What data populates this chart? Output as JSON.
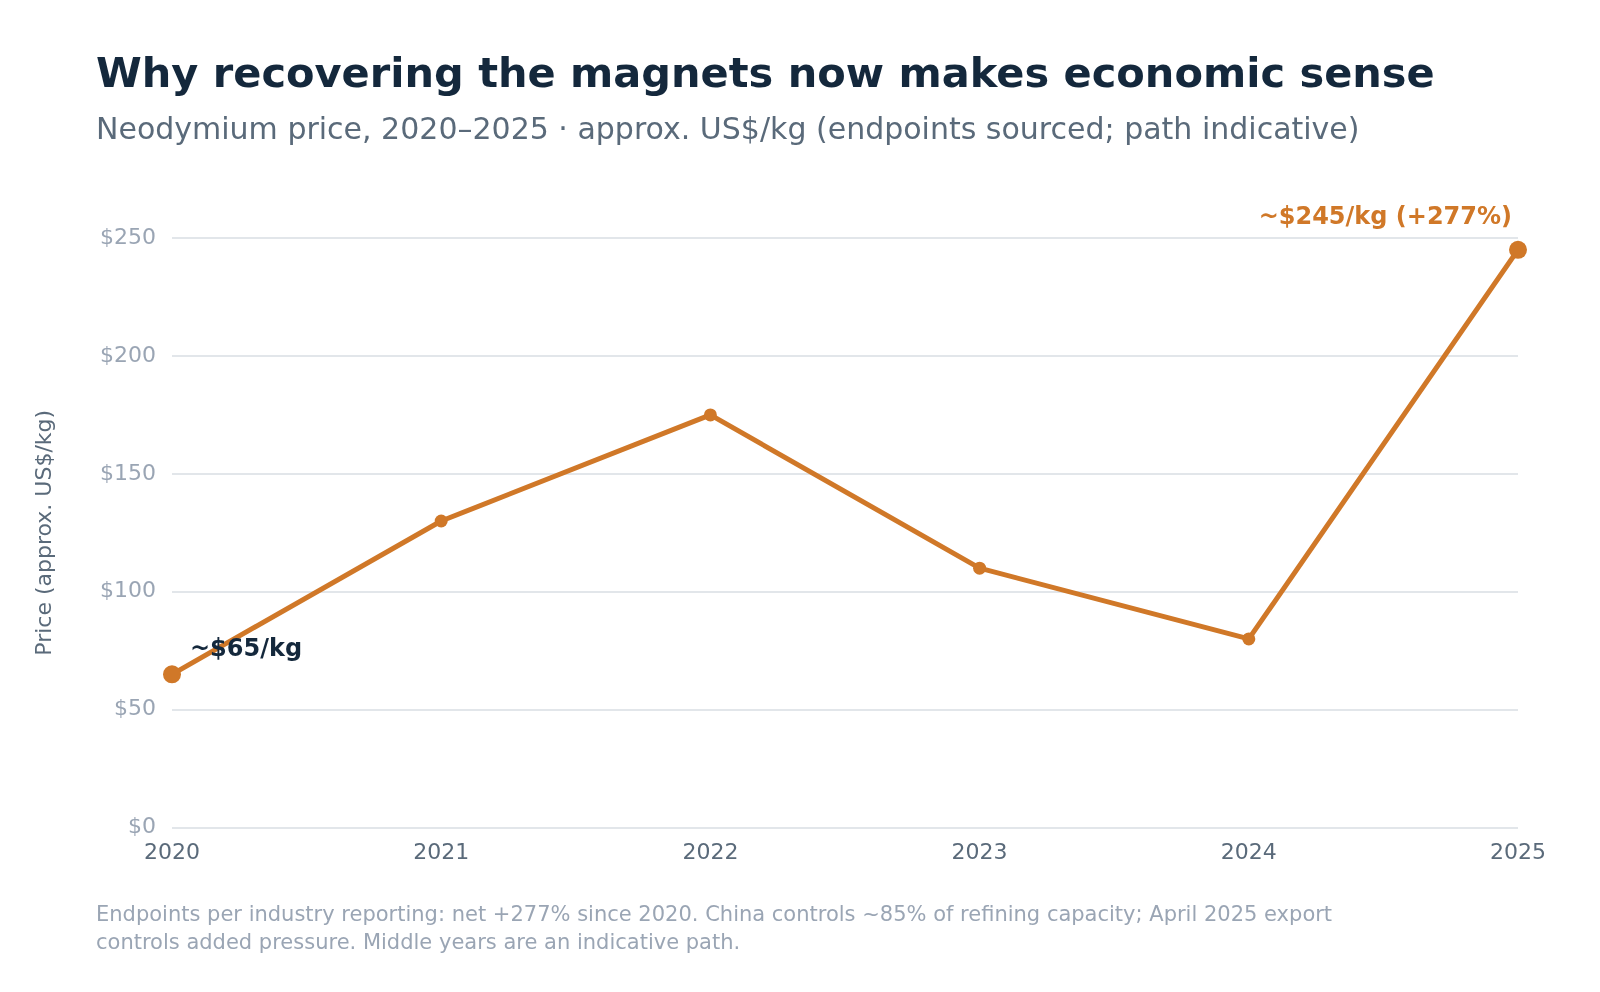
{
  "chart_data": {
    "type": "line",
    "title": "Why recovering the magnets now makes economic sense",
    "subtitle": "Neodymium price, 2020–2025 · approx. US$/kg (endpoints sourced; path indicative)",
    "ylabel": "Price (approx. US$/kg)",
    "x": [
      2020,
      2021,
      2022,
      2023,
      2024,
      2025
    ],
    "series": [
      {
        "color": "#d07828",
        "values": [
          65,
          130,
          175,
          110,
          80,
          245
        ]
      }
    ],
    "xlim": [
      2020,
      2025
    ],
    "xticks": [
      2020,
      2021,
      2022,
      2023,
      2024,
      2025
    ],
    "ylim": [
      0,
      250
    ],
    "yticks": [
      {
        "value": 0,
        "label": "$0"
      },
      {
        "value": 50,
        "label": "$50"
      },
      {
        "value": 100,
        "label": "$100"
      },
      {
        "value": 150,
        "label": "$150"
      },
      {
        "value": 200,
        "label": "$200"
      },
      {
        "value": 250,
        "label": "$250"
      }
    ],
    "grid": "y",
    "legend": false,
    "marker": "circle",
    "line_style": "solid",
    "annotations": [
      {
        "text": "~$65/kg",
        "x": 2020,
        "y": 65
      },
      {
        "text": "~$245/kg (+277%)",
        "x": 2025,
        "y": 245
      },
      "Endpoints per industry reporting: net +277% since 2020. China controls ~85% of refining capacity; April 2025 export controls added pressure. Middle years are an indicative path."
    ]
  }
}
